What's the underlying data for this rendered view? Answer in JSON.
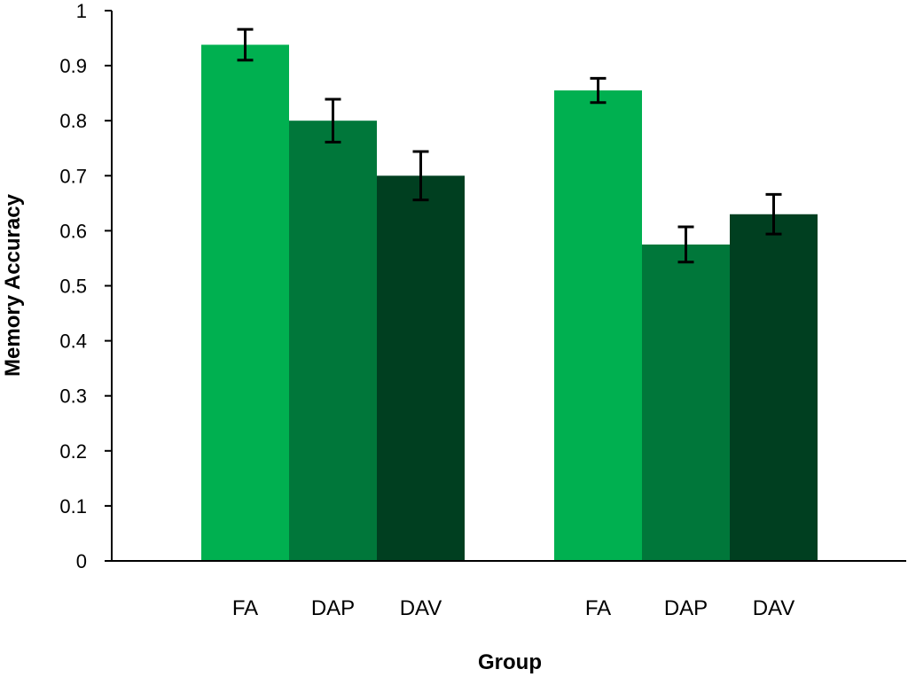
{
  "chart_data": {
    "type": "bar",
    "title": "",
    "xlabel": "Group",
    "ylabel": "Memory Accuracy",
    "ylim": [
      0,
      1
    ],
    "yticks": [
      "0",
      "0.1",
      "0.2",
      "0.3",
      "0.4",
      "0.5",
      "0.6",
      "0.7",
      "0.8",
      "0.9",
      "1"
    ],
    "ytick_values": [
      0,
      0.1,
      0.2,
      0.3,
      0.4,
      0.5,
      0.6,
      0.7,
      0.8,
      0.9,
      1
    ],
    "grid": false,
    "groups": [
      {
        "bars": [
          {
            "category": "FA",
            "value": 0.938,
            "error": 0.028,
            "color": "#00b050"
          },
          {
            "category": "DAP",
            "value": 0.8,
            "error": 0.039,
            "color": "#00773a"
          },
          {
            "category": "DAV",
            "value": 0.7,
            "error": 0.044,
            "color": "#003f20"
          }
        ]
      },
      {
        "bars": [
          {
            "category": "FA",
            "value": 0.855,
            "error": 0.022,
            "color": "#00b050"
          },
          {
            "category": "DAP",
            "value": 0.575,
            "error": 0.032,
            "color": "#00773a"
          },
          {
            "category": "DAV",
            "value": 0.63,
            "error": 0.036,
            "color": "#003f20"
          }
        ]
      }
    ]
  }
}
